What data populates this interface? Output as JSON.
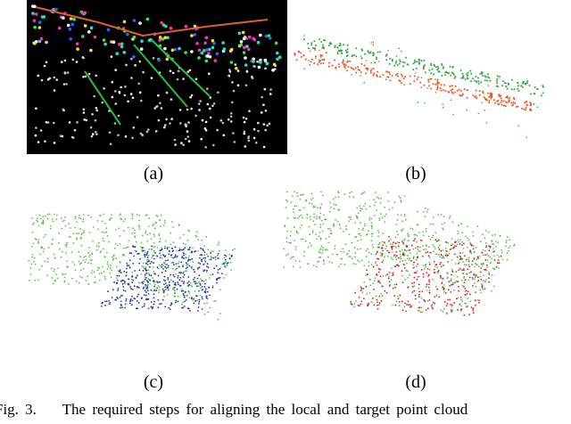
{
  "figure": {
    "panels": [
      {
        "label": "(a)"
      },
      {
        "label": "(b)"
      },
      {
        "label": "(c)"
      },
      {
        "label": "(d)"
      }
    ],
    "caption": {
      "number": "Fig. 3.",
      "text": "The required steps for aligning the local and target point cloud"
    }
  }
}
